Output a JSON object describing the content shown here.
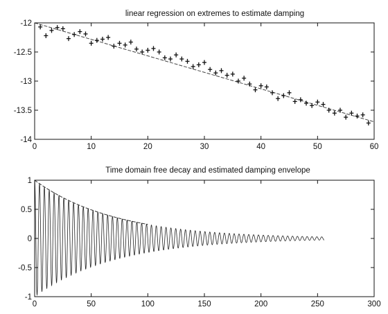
{
  "chart_data": [
    {
      "type": "scatter",
      "title": "linear regression on extremes to estimate damping",
      "xlim": [
        0,
        60
      ],
      "ylim": [
        -14,
        -12
      ],
      "xticks": [
        0,
        10,
        20,
        30,
        40,
        50,
        60
      ],
      "yticks": [
        -12,
        -12.5,
        -13,
        -13.5,
        -14
      ],
      "ytick_labels": [
        "-12",
        "-12.5",
        "-13",
        "-13.5",
        "-14"
      ],
      "grid": false,
      "fit": {
        "x": [
          0,
          60
        ],
        "y": [
          -12.0,
          -13.7
        ]
      },
      "x": [
        1,
        2,
        3,
        4,
        5,
        6,
        7,
        8,
        9,
        10,
        11,
        12,
        13,
        14,
        15,
        16,
        17,
        18,
        19,
        20,
        21,
        22,
        23,
        24,
        25,
        26,
        27,
        28,
        29,
        30,
        31,
        32,
        33,
        34,
        35,
        36,
        37,
        38,
        39,
        40,
        41,
        42,
        43,
        44,
        45,
        46,
        47,
        48,
        49,
        50,
        51,
        52,
        53,
        54,
        55,
        56,
        57,
        58,
        59
      ],
      "y": [
        -12.07,
        -12.22,
        -12.13,
        -12.08,
        -12.1,
        -12.27,
        -12.2,
        -12.15,
        -12.19,
        -12.35,
        -12.3,
        -12.28,
        -12.25,
        -12.4,
        -12.35,
        -12.38,
        -12.33,
        -12.45,
        -12.5,
        -12.47,
        -12.44,
        -12.5,
        -12.6,
        -12.62,
        -12.55,
        -12.62,
        -12.66,
        -12.75,
        -12.72,
        -12.68,
        -12.8,
        -12.86,
        -12.82,
        -12.9,
        -12.88,
        -13.0,
        -12.95,
        -13.05,
        -13.15,
        -13.08,
        -13.1,
        -13.2,
        -13.3,
        -13.25,
        -13.2,
        -13.35,
        -13.32,
        -13.38,
        -13.42,
        -13.36,
        -13.4,
        -13.5,
        -13.55,
        -13.5,
        -13.62,
        -13.55,
        -13.6,
        -13.58,
        -13.72
      ]
    },
    {
      "type": "line",
      "title": "Time domain free decay and estimated damping envelope",
      "xlim": [
        0,
        300
      ],
      "ylim": [
        -1,
        1
      ],
      "xticks": [
        0,
        50,
        100,
        150,
        200,
        250,
        300
      ],
      "yticks": [
        1,
        0.5,
        0,
        -0.5,
        -1
      ],
      "ytick_labels": [
        "1",
        "0.5",
        "0",
        "-0.5",
        "-1"
      ],
      "grid": false,
      "signal": {
        "x_end": 256,
        "period": 4.3,
        "decay_rate": 0.0142
      },
      "envelope": {
        "x": [
          0,
          100
        ],
        "amplitude": 1.0,
        "decay_rate": 0.0142
      }
    }
  ]
}
